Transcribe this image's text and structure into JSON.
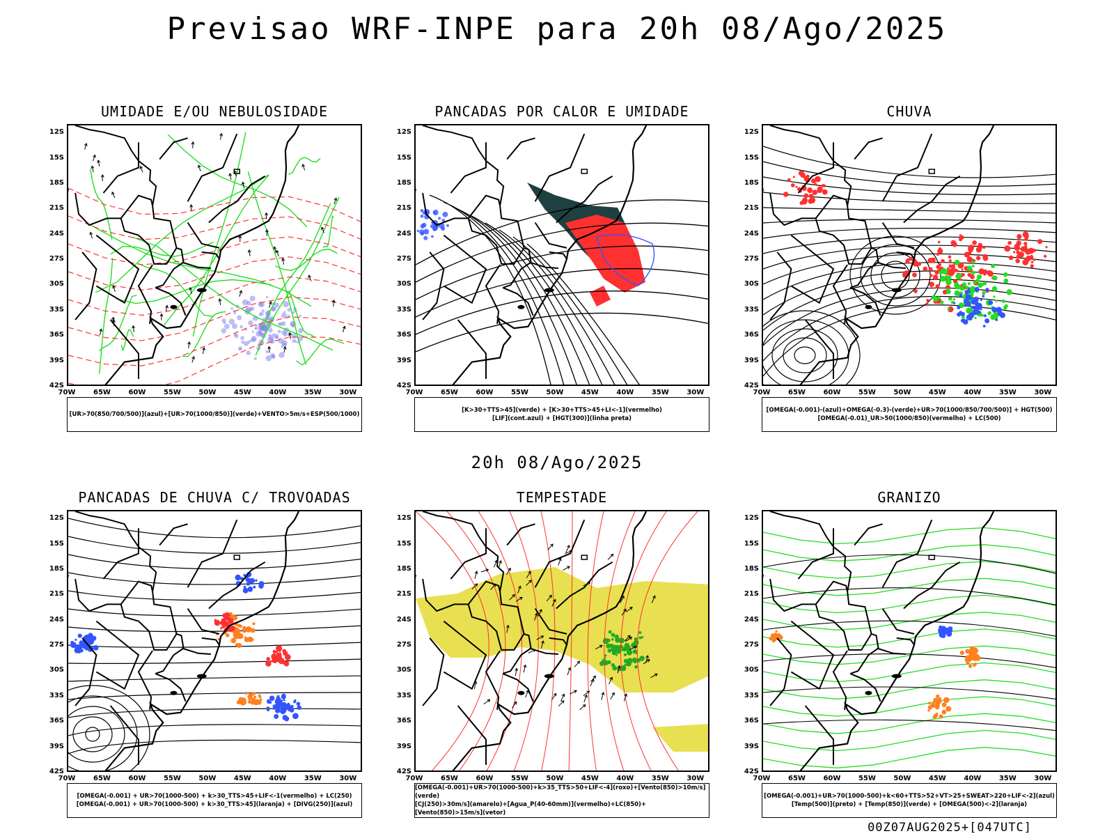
{
  "main_title": "Previsao WRF-INPE  para 20h 08/Ago/2025",
  "mid_title": "20h 08/Ago/2025",
  "footer": "00Z07AUG2025+[047UTC]",
  "lat_labels": [
    "12S",
    "15S",
    "18S",
    "21S",
    "24S",
    "27S",
    "30S",
    "33S",
    "36S",
    "39S",
    "42S"
  ],
  "lon_labels": [
    "70W",
    "65W",
    "60W",
    "55W",
    "50W",
    "45W",
    "40W",
    "35W",
    "30W"
  ],
  "panels": [
    {
      "title": "UMIDADE E/OU NEBULOSIDADE",
      "legend": [
        "[UR>70(850/700/500)](azul)+[UR>70(1000/850)](verde)+VENTO>5m/s+ESP(500/1000)"
      ]
    },
    {
      "title": "PANCADAS POR CALOR E UMIDADE",
      "legend": [
        "[K>30+TTS>45](verde) + [K>30+TTS>45+LI<-1](vermelho)",
        "[LIF](cont.azul) + [HGT(300)](linha preta)"
      ]
    },
    {
      "title": "CHUVA",
      "legend": [
        "[OMEGA(-0.001)-(azul)+OMEGA(-0.3)-(verde)+UR>70(1000/850/700/500)] + HGT(500)",
        "[OMEGA(-0.01)_UR>50(1000/850)(vermelho) + LC(500)"
      ]
    },
    {
      "title": "PANCADAS DE CHUVA C/ TROVOADAS",
      "legend": [
        "[OMEGA(-0.001) + UR>70(1000-500) + k>30_TTS>45+LIF<-1(vermelho) + LC(250)",
        "[OMEGA(-0.001) + UR>70(1000-500) + k>30_TTS>45](laranja) + [DIVG(250)](azul)"
      ]
    },
    {
      "title": "TEMPESTADE",
      "legend": [
        "[OMEGA(-0.001)+UR>70(1000-500)+k>35_TTS>50+LIF<-4](roxo)+[Vento(850)>10m/s](verde)",
        "[CJ(250)>30m/s](amarelo)+[Agua_P(40-60mm)](vermelho)+LC(850)+[Vento(850)>15m/s](vetor)"
      ]
    },
    {
      "title": "GRANIZO",
      "legend": [
        "[OMEGA(-0.001)+UR>70(1000-500)+k<60+TTS>52+VT>25+SWEAT>220+LIF<-2](azul)",
        "[Temp(500)](preto) + [Temp(850)](verde) + [OMEGA(500)<-2](laranja)"
      ]
    }
  ],
  "colors": {
    "green": "#22dd22",
    "red": "#ff3030",
    "blue": "#3355ff",
    "purple": "#8888ee",
    "yellow": "#e8e050",
    "darkteal": "#1f4040",
    "orange": "#ff8020"
  }
}
